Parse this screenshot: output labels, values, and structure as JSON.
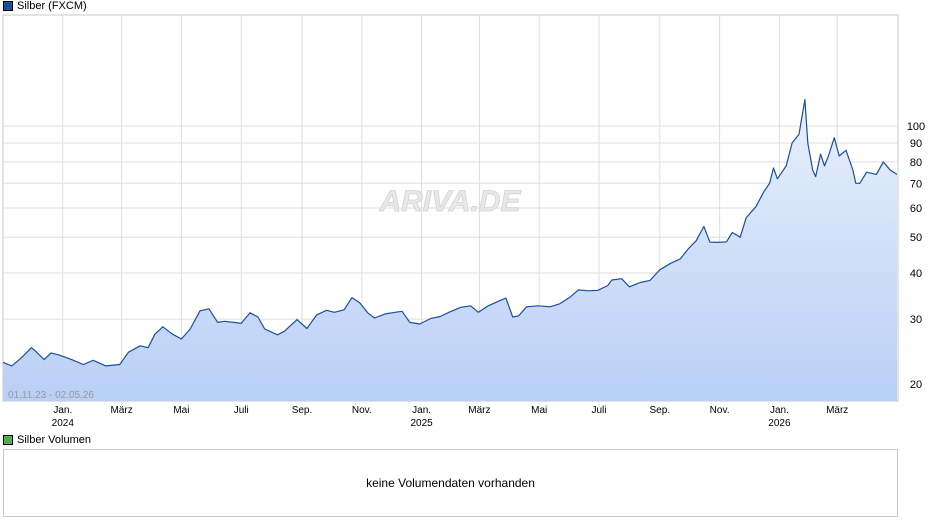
{
  "legend": {
    "price_label": "Silber (FXCM)",
    "price_color": "#1c4fa0",
    "volume_label": "Silber Volumen",
    "volume_color": "#4caf50"
  },
  "range_label": "01.11.23 - 02.05.26",
  "watermark": "ARIVA.DE",
  "volume_message": "keine Volumendaten vorhanden",
  "chart_data": {
    "type": "area",
    "scale": "log",
    "ylim": [
      18,
      200
    ],
    "y_ticks": [
      20,
      30,
      40,
      50,
      60,
      70,
      80,
      90,
      100
    ],
    "x_range": [
      "2023-11-01",
      "2026-05-02"
    ],
    "x_ticks": [
      {
        "date": "2024-01-01",
        "label": "Jan.",
        "year": "2024"
      },
      {
        "date": "2024-03-01",
        "label": "März"
      },
      {
        "date": "2024-05-01",
        "label": "Mai"
      },
      {
        "date": "2024-07-01",
        "label": "Juli"
      },
      {
        "date": "2024-09-01",
        "label": "Sep."
      },
      {
        "date": "2024-11-01",
        "label": "Nov."
      },
      {
        "date": "2025-01-01",
        "label": "Jan.",
        "year": "2025"
      },
      {
        "date": "2025-03-01",
        "label": "März"
      },
      {
        "date": "2025-05-01",
        "label": "Mai"
      },
      {
        "date": "2025-07-01",
        "label": "Juli"
      },
      {
        "date": "2025-09-01",
        "label": "Sep."
      },
      {
        "date": "2025-11-01",
        "label": "Nov."
      },
      {
        "date": "2026-01-01",
        "label": "Jan.",
        "year": "2026"
      },
      {
        "date": "2026-03-01",
        "label": "März"
      }
    ],
    "grid": true,
    "series": [
      {
        "name": "Silber (FXCM)",
        "color": "#1c4fa0",
        "points": [
          [
            "2023-11-01",
            22.9
          ],
          [
            "2023-11-10",
            22.4
          ],
          [
            "2023-11-20",
            23.6
          ],
          [
            "2023-11-30",
            25.1
          ],
          [
            "2023-12-04",
            24.6
          ],
          [
            "2023-12-13",
            23.3
          ],
          [
            "2023-12-20",
            24.3
          ],
          [
            "2023-12-28",
            24.0
          ],
          [
            "2024-01-10",
            23.3
          ],
          [
            "2024-01-22",
            22.6
          ],
          [
            "2024-02-01",
            23.2
          ],
          [
            "2024-02-14",
            22.4
          ],
          [
            "2024-02-28",
            22.6
          ],
          [
            "2024-03-08",
            24.4
          ],
          [
            "2024-03-20",
            25.4
          ],
          [
            "2024-03-28",
            25.1
          ],
          [
            "2024-04-04",
            27.3
          ],
          [
            "2024-04-12",
            28.6
          ],
          [
            "2024-04-22",
            27.3
          ],
          [
            "2024-05-01",
            26.5
          ],
          [
            "2024-05-10",
            28.2
          ],
          [
            "2024-05-20",
            31.6
          ],
          [
            "2024-05-29",
            32.0
          ],
          [
            "2024-06-07",
            29.4
          ],
          [
            "2024-06-14",
            29.6
          ],
          [
            "2024-06-24",
            29.4
          ],
          [
            "2024-07-01",
            29.2
          ],
          [
            "2024-07-10",
            31.2
          ],
          [
            "2024-07-18",
            30.4
          ],
          [
            "2024-07-25",
            28.2
          ],
          [
            "2024-08-07",
            27.2
          ],
          [
            "2024-08-14",
            27.8
          ],
          [
            "2024-08-27",
            29.9
          ],
          [
            "2024-09-06",
            28.3
          ],
          [
            "2024-09-16",
            30.8
          ],
          [
            "2024-09-26",
            31.7
          ],
          [
            "2024-10-04",
            31.3
          ],
          [
            "2024-10-14",
            31.8
          ],
          [
            "2024-10-22",
            34.3
          ],
          [
            "2024-10-30",
            33.2
          ],
          [
            "2024-11-07",
            31.2
          ],
          [
            "2024-11-14",
            30.2
          ],
          [
            "2024-11-25",
            31.0
          ],
          [
            "2024-12-05",
            31.3
          ],
          [
            "2024-12-12",
            31.5
          ],
          [
            "2024-12-20",
            29.4
          ],
          [
            "2024-12-30",
            29.1
          ],
          [
            "2025-01-10",
            30.1
          ],
          [
            "2025-01-20",
            30.5
          ],
          [
            "2025-01-30",
            31.4
          ],
          [
            "2025-02-10",
            32.3
          ],
          [
            "2025-02-20",
            32.6
          ],
          [
            "2025-02-28",
            31.3
          ],
          [
            "2025-03-10",
            32.6
          ],
          [
            "2025-03-20",
            33.5
          ],
          [
            "2025-03-28",
            34.2
          ],
          [
            "2025-04-04",
            30.4
          ],
          [
            "2025-04-10",
            30.6
          ],
          [
            "2025-04-18",
            32.4
          ],
          [
            "2025-04-30",
            32.6
          ],
          [
            "2025-05-12",
            32.4
          ],
          [
            "2025-05-22",
            33.0
          ],
          [
            "2025-06-02",
            34.5
          ],
          [
            "2025-06-10",
            36.0
          ],
          [
            "2025-06-20",
            35.8
          ],
          [
            "2025-06-30",
            35.9
          ],
          [
            "2025-07-10",
            37.0
          ],
          [
            "2025-07-14",
            38.3
          ],
          [
            "2025-07-24",
            38.6
          ],
          [
            "2025-08-01",
            36.7
          ],
          [
            "2025-08-12",
            37.7
          ],
          [
            "2025-08-22",
            38.2
          ],
          [
            "2025-09-01",
            40.8
          ],
          [
            "2025-09-12",
            42.5
          ],
          [
            "2025-09-22",
            43.7
          ],
          [
            "2025-09-30",
            46.5
          ],
          [
            "2025-10-08",
            48.9
          ],
          [
            "2025-10-16",
            53.5
          ],
          [
            "2025-10-22",
            48.5
          ],
          [
            "2025-10-31",
            48.4
          ],
          [
            "2025-11-08",
            48.6
          ],
          [
            "2025-11-14",
            51.5
          ],
          [
            "2025-11-22",
            50.0
          ],
          [
            "2025-11-28",
            56.4
          ],
          [
            "2025-12-08",
            60.5
          ],
          [
            "2025-12-16",
            66.3
          ],
          [
            "2025-12-22",
            70.0
          ],
          [
            "2025-12-26",
            77.0
          ],
          [
            "2025-12-30",
            72.0
          ],
          [
            "2026-01-08",
            78.0
          ],
          [
            "2026-01-14",
            90.0
          ],
          [
            "2026-01-21",
            95.0
          ],
          [
            "2026-01-27",
            118.0
          ],
          [
            "2026-01-30",
            90.0
          ],
          [
            "2026-02-04",
            76.0
          ],
          [
            "2026-02-07",
            73.0
          ],
          [
            "2026-02-12",
            84.0
          ],
          [
            "2026-02-16",
            78.0
          ],
          [
            "2026-02-20",
            83.0
          ],
          [
            "2026-02-26",
            93.0
          ],
          [
            "2026-03-03",
            83.0
          ],
          [
            "2026-03-10",
            86.0
          ],
          [
            "2026-03-17",
            76.0
          ],
          [
            "2026-03-20",
            70.0
          ],
          [
            "2026-03-24",
            70.0
          ],
          [
            "2026-03-31",
            75.0
          ],
          [
            "2026-04-10",
            74.0
          ],
          [
            "2026-04-17",
            80.0
          ],
          [
            "2026-04-24",
            76.0
          ],
          [
            "2026-05-01",
            74.0
          ]
        ]
      }
    ]
  }
}
